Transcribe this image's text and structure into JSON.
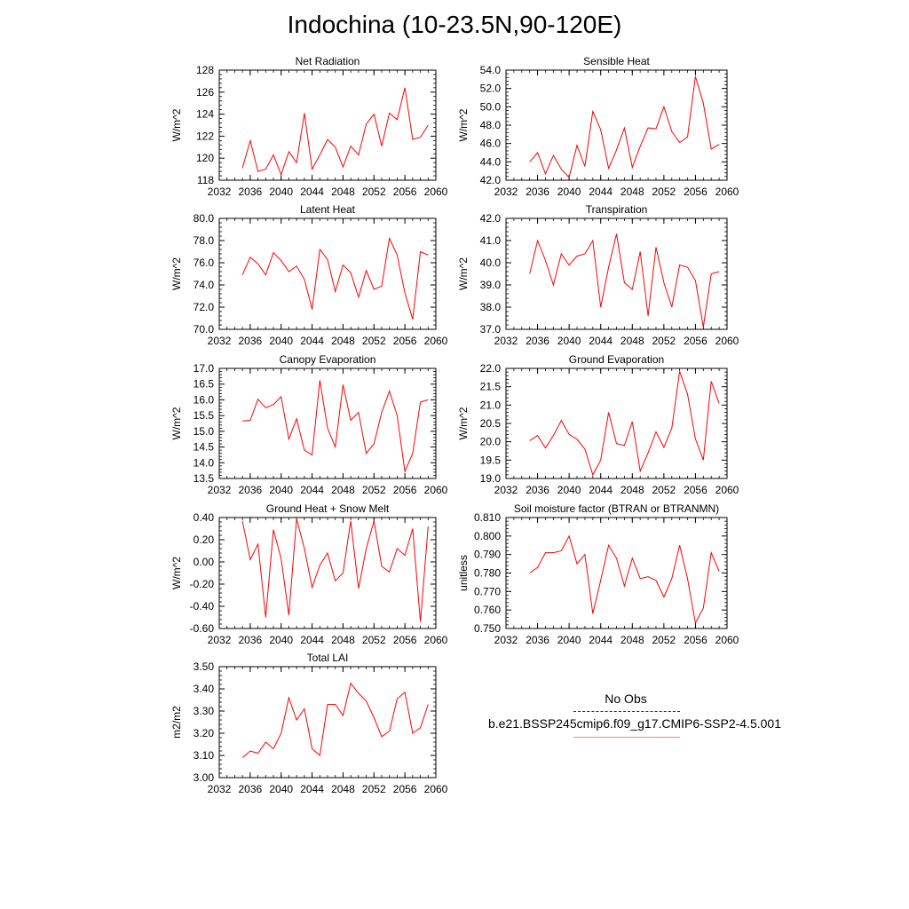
{
  "title": "Indochina (10-23.5N,90-120E)",
  "legend": {
    "items": [
      {
        "label": "No Obs",
        "color": "#1f1f9f",
        "style": "dashed"
      },
      {
        "label": "b.e21.BSSP245cmip6.f09_g17.CMIP6-SSP2-4.5.001",
        "color": "#ff0000",
        "style": "solid"
      }
    ]
  },
  "chart_data": [
    {
      "type": "line",
      "title": "Net Radiation",
      "ylabel": "W/m^2",
      "xlim": [
        2032,
        2060
      ],
      "ylim": [
        118,
        128
      ],
      "xticks": [
        2032,
        2036,
        2040,
        2044,
        2048,
        2052,
        2056,
        2060
      ],
      "xtick_labels": [
        "2032",
        "2036",
        "2040",
        "2044",
        "2048",
        "2052",
        "2056",
        "2060"
      ],
      "yticks": [
        118,
        120,
        122,
        124,
        126,
        128
      ],
      "ytick_labels": [
        "118",
        "120",
        "122",
        "124",
        "126",
        "128"
      ],
      "series": [
        {
          "color": "#ff0000",
          "x": [
            2035,
            2036,
            2037,
            2038,
            2039,
            2040,
            2041,
            2042,
            2043,
            2044,
            2045,
            2046,
            2047,
            2048,
            2049,
            2050,
            2051,
            2052,
            2053,
            2054,
            2055,
            2056,
            2057,
            2058,
            2059
          ],
          "y": [
            119.1,
            121.6,
            118.8,
            119.0,
            120.3,
            118.5,
            120.6,
            119.6,
            124.1,
            119.0,
            120.3,
            121.7,
            121.0,
            119.2,
            121.1,
            120.3,
            123.1,
            124.0,
            121.1,
            124.1,
            123.5,
            126.4,
            121.7,
            121.9,
            123.0
          ]
        }
      ]
    },
    {
      "type": "line",
      "title": "Sensible Heat",
      "ylabel": "W/m^2",
      "xlim": [
        2032,
        2060
      ],
      "ylim": [
        42,
        54
      ],
      "xticks": [
        2032,
        2036,
        2040,
        2044,
        2048,
        2052,
        2056,
        2060
      ],
      "xtick_labels": [
        "2032",
        "2036",
        "2040",
        "2044",
        "2048",
        "2052",
        "2056",
        "2060"
      ],
      "yticks": [
        42,
        44,
        46,
        48,
        50,
        52,
        54
      ],
      "ytick_labels": [
        "42.0",
        "44.0",
        "46.0",
        "48.0",
        "50.0",
        "52.0",
        "54.0"
      ],
      "series": [
        {
          "color": "#ff0000",
          "x": [
            2035,
            2036,
            2037,
            2038,
            2039,
            2040,
            2041,
            2042,
            2043,
            2044,
            2045,
            2046,
            2047,
            2048,
            2049,
            2050,
            2051,
            2052,
            2053,
            2054,
            2055,
            2056,
            2057,
            2058,
            2059
          ],
          "y": [
            44.0,
            45.0,
            42.7,
            44.7,
            43.2,
            42.3,
            45.8,
            43.5,
            49.5,
            47.5,
            43.3,
            45.3,
            47.7,
            43.4,
            45.7,
            47.7,
            47.6,
            50.0,
            47.3,
            46.1,
            46.7,
            53.3,
            50.4,
            45.4,
            45.9
          ]
        }
      ]
    },
    {
      "type": "line",
      "title": "Latent Heat",
      "ylabel": "W/m^2",
      "xlim": [
        2032,
        2060
      ],
      "ylim": [
        70,
        80
      ],
      "xticks": [
        2032,
        2036,
        2040,
        2044,
        2048,
        2052,
        2056,
        2060
      ],
      "xtick_labels": [
        "2032",
        "2036",
        "2040",
        "2044",
        "2048",
        "2052",
        "2056",
        "2060"
      ],
      "yticks": [
        70,
        72,
        74,
        76,
        78,
        80
      ],
      "ytick_labels": [
        "70.0",
        "72.0",
        "74.0",
        "76.0",
        "78.0",
        "80.0"
      ],
      "series": [
        {
          "color": "#ff0000",
          "x": [
            2035,
            2036,
            2037,
            2038,
            2039,
            2040,
            2041,
            2042,
            2043,
            2044,
            2045,
            2046,
            2047,
            2048,
            2049,
            2050,
            2051,
            2052,
            2053,
            2054,
            2055,
            2056,
            2057,
            2058,
            2059
          ],
          "y": [
            74.9,
            76.5,
            75.9,
            74.9,
            76.9,
            76.2,
            75.2,
            75.7,
            74.5,
            71.8,
            77.2,
            76.3,
            73.4,
            75.8,
            75.1,
            72.9,
            75.3,
            73.6,
            73.9,
            78.2,
            76.7,
            73.3,
            70.9,
            77.0,
            76.7
          ]
        }
      ]
    },
    {
      "type": "line",
      "title": "Transpiration",
      "ylabel": "W/m^2",
      "xlim": [
        2032,
        2060
      ],
      "ylim": [
        37,
        42
      ],
      "xticks": [
        2032,
        2036,
        2040,
        2044,
        2048,
        2052,
        2056,
        2060
      ],
      "xtick_labels": [
        "2032",
        "2036",
        "2040",
        "2044",
        "2048",
        "2052",
        "2056",
        "2060"
      ],
      "yticks": [
        37,
        38,
        39,
        40,
        41,
        42
      ],
      "ytick_labels": [
        "37.0",
        "38.0",
        "39.0",
        "40.0",
        "41.0",
        "42.0"
      ],
      "series": [
        {
          "color": "#ff0000",
          "x": [
            2035,
            2036,
            2037,
            2038,
            2039,
            2040,
            2041,
            2042,
            2043,
            2044,
            2045,
            2046,
            2047,
            2048,
            2049,
            2050,
            2051,
            2052,
            2053,
            2054,
            2055,
            2056,
            2057,
            2058,
            2059
          ],
          "y": [
            39.5,
            41.0,
            40.1,
            39.0,
            40.4,
            39.9,
            40.3,
            40.4,
            41.0,
            38.0,
            39.8,
            41.3,
            39.1,
            38.8,
            40.5,
            37.6,
            40.7,
            39.1,
            38.0,
            39.9,
            39.8,
            39.2,
            37.1,
            39.5,
            39.6
          ]
        }
      ]
    },
    {
      "type": "line",
      "title": "Canopy Evaporation",
      "ylabel": "W/m^2",
      "xlim": [
        2032,
        2060
      ],
      "ylim": [
        13.5,
        17.0
      ],
      "xticks": [
        2032,
        2036,
        2040,
        2044,
        2048,
        2052,
        2056,
        2060
      ],
      "xtick_labels": [
        "2032",
        "2036",
        "2040",
        "2044",
        "2048",
        "2052",
        "2056",
        "2060"
      ],
      "yticks": [
        13.5,
        14.0,
        14.5,
        15.0,
        15.5,
        16.0,
        16.5,
        17.0
      ],
      "ytick_labels": [
        "13.5",
        "14.0",
        "14.5",
        "15.0",
        "15.5",
        "16.0",
        "16.5",
        "17.0"
      ],
      "series": [
        {
          "color": "#ff0000",
          "x": [
            2035,
            2036,
            2037,
            2038,
            2039,
            2040,
            2041,
            2042,
            2043,
            2044,
            2045,
            2046,
            2047,
            2048,
            2049,
            2050,
            2051,
            2052,
            2053,
            2054,
            2055,
            2056,
            2057,
            2058,
            2059
          ],
          "y": [
            15.33,
            15.35,
            16.02,
            15.75,
            15.85,
            16.1,
            14.75,
            15.4,
            14.4,
            14.25,
            16.62,
            15.1,
            14.5,
            16.48,
            15.35,
            15.6,
            14.3,
            14.6,
            15.6,
            16.28,
            15.5,
            13.72,
            14.3,
            15.93,
            16.0
          ]
        }
      ]
    },
    {
      "type": "line",
      "title": "Ground Evaporation",
      "ylabel": "W/m^2",
      "xlim": [
        2032,
        2060
      ],
      "ylim": [
        19.0,
        22.0
      ],
      "xticks": [
        2032,
        2036,
        2040,
        2044,
        2048,
        2052,
        2056,
        2060
      ],
      "xtick_labels": [
        "2032",
        "2036",
        "2040",
        "2044",
        "2048",
        "2052",
        "2056",
        "2060"
      ],
      "yticks": [
        19.0,
        19.5,
        20.0,
        20.5,
        21.0,
        21.5,
        22.0
      ],
      "ytick_labels": [
        "19.0",
        "19.5",
        "20.0",
        "20.5",
        "21.0",
        "21.5",
        "22.0"
      ],
      "series": [
        {
          "color": "#ff0000",
          "x": [
            2035,
            2036,
            2037,
            2038,
            2039,
            2040,
            2041,
            2042,
            2043,
            2044,
            2045,
            2046,
            2047,
            2048,
            2049,
            2050,
            2051,
            2052,
            2053,
            2054,
            2055,
            2056,
            2057,
            2058,
            2059
          ],
          "y": [
            20.03,
            20.17,
            19.83,
            20.17,
            20.58,
            20.2,
            20.07,
            19.8,
            19.1,
            19.5,
            20.8,
            19.95,
            19.9,
            20.55,
            19.2,
            19.7,
            20.27,
            19.85,
            20.37,
            21.92,
            21.3,
            20.08,
            19.5,
            21.65,
            21.05
          ]
        }
      ]
    },
    {
      "type": "line",
      "title": "Ground Heat + Snow Melt",
      "ylabel": "W/m^2",
      "xlim": [
        2032,
        2060
      ],
      "ylim": [
        -0.6,
        0.4
      ],
      "xticks": [
        2032,
        2036,
        2040,
        2044,
        2048,
        2052,
        2056,
        2060
      ],
      "xtick_labels": [
        "2032",
        "2036",
        "2040",
        "2044",
        "2048",
        "2052",
        "2056",
        "2060"
      ],
      "yticks": [
        -0.6,
        -0.4,
        -0.2,
        0.0,
        0.2,
        0.4
      ],
      "ytick_labels": [
        "-0.60",
        "-0.40",
        "-0.20",
        "0.00",
        "0.20",
        "0.40"
      ],
      "series": [
        {
          "color": "#ff0000",
          "x": [
            2035,
            2036,
            2037,
            2038,
            2039,
            2040,
            2041,
            2042,
            2043,
            2044,
            2045,
            2046,
            2047,
            2048,
            2049,
            2050,
            2051,
            2052,
            2053,
            2054,
            2055,
            2056,
            2057,
            2058,
            2059
          ],
          "y": [
            0.37,
            0.02,
            0.16,
            -0.5,
            0.29,
            0.03,
            -0.48,
            0.39,
            0.12,
            -0.23,
            -0.03,
            0.08,
            -0.17,
            -0.1,
            0.37,
            -0.24,
            0.12,
            0.37,
            -0.04,
            -0.09,
            0.12,
            0.06,
            0.3,
            -0.54,
            0.32
          ]
        }
      ]
    },
    {
      "type": "line",
      "title": "Soil moisture factor (BTRAN or BTRANMN)",
      "ylabel": "unitless",
      "xlim": [
        2032,
        2060
      ],
      "ylim": [
        0.75,
        0.81
      ],
      "xticks": [
        2032,
        2036,
        2040,
        2044,
        2048,
        2052,
        2056,
        2060
      ],
      "xtick_labels": [
        "2032",
        "2036",
        "2040",
        "2044",
        "2048",
        "2052",
        "2056",
        "2060"
      ],
      "yticks": [
        0.75,
        0.76,
        0.77,
        0.78,
        0.79,
        0.8,
        0.81
      ],
      "ytick_labels": [
        "0.750",
        "0.760",
        "0.770",
        "0.780",
        "0.790",
        "0.800",
        "0.810"
      ],
      "series": [
        {
          "color": "#ff0000",
          "x": [
            2035,
            2036,
            2037,
            2038,
            2039,
            2040,
            2041,
            2042,
            2043,
            2044,
            2045,
            2046,
            2047,
            2048,
            2049,
            2050,
            2051,
            2052,
            2053,
            2054,
            2055,
            2056,
            2057,
            2058,
            2059
          ],
          "y": [
            0.78,
            0.783,
            0.791,
            0.791,
            0.792,
            0.8,
            0.785,
            0.79,
            0.758,
            0.776,
            0.795,
            0.788,
            0.773,
            0.788,
            0.777,
            0.778,
            0.776,
            0.767,
            0.777,
            0.795,
            0.777,
            0.753,
            0.761,
            0.791,
            0.781
          ]
        }
      ]
    },
    {
      "type": "line",
      "title": "Total LAI",
      "ylabel": "m2/m2",
      "xlim": [
        2032,
        2060
      ],
      "ylim": [
        3.0,
        3.5
      ],
      "xticks": [
        2032,
        2036,
        2040,
        2044,
        2048,
        2052,
        2056,
        2060
      ],
      "xtick_labels": [
        "2032",
        "2036",
        "2040",
        "2044",
        "2048",
        "2052",
        "2056",
        "2060"
      ],
      "yticks": [
        3.0,
        3.1,
        3.2,
        3.3,
        3.4,
        3.5
      ],
      "ytick_labels": [
        "3.00",
        "3.10",
        "3.20",
        "3.30",
        "3.40",
        "3.50"
      ],
      "series": [
        {
          "color": "#ff0000",
          "x": [
            2035,
            2036,
            2037,
            2038,
            2039,
            2040,
            2041,
            2042,
            2043,
            2044,
            2045,
            2046,
            2047,
            2048,
            2049,
            2050,
            2051,
            2052,
            2053,
            2054,
            2055,
            2056,
            2057,
            2058,
            2059
          ],
          "y": [
            3.09,
            3.12,
            3.11,
            3.16,
            3.13,
            3.2,
            3.36,
            3.26,
            3.31,
            3.13,
            3.1,
            3.33,
            3.33,
            3.28,
            3.425,
            3.38,
            3.345,
            3.27,
            3.185,
            3.21,
            3.355,
            3.385,
            3.2,
            3.225,
            3.33
          ]
        }
      ]
    }
  ]
}
